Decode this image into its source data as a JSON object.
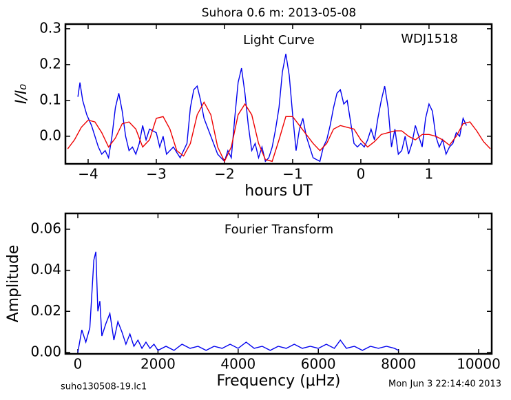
{
  "chart_data": [
    {
      "type": "line",
      "title": "Suhora 0.6 m:  2013-05-08",
      "annotations": [
        "Light Curve",
        "WDJ1518"
      ],
      "xlabel": "hours UT",
      "ylabel": "I/I₀",
      "xlim": [
        -4.333,
        1.92
      ],
      "ylim": [
        -0.077,
        0.313
      ],
      "xticks": [
        {
          "value": -4,
          "label": "−4"
        },
        {
          "value": -3,
          "label": "−3"
        },
        {
          "value": -2,
          "label": "−2"
        },
        {
          "value": -1,
          "label": "−1"
        },
        0,
        1
      ],
      "yticks": [
        {
          "value": 0,
          "label": "0.0"
        },
        {
          "value": 0.1,
          "label": "0.1"
        },
        {
          "value": 0.2,
          "label": "0.2"
        },
        {
          "value": 0.3,
          "label": "0.3"
        }
      ],
      "series": [
        {
          "color": "#0000ee",
          "x": [
            -4.15,
            -4.12,
            -4.08,
            -4.02,
            -3.95,
            -3.9,
            -3.85,
            -3.8,
            -3.75,
            -3.7,
            -3.65,
            -3.6,
            -3.55,
            -3.5,
            -3.45,
            -3.4,
            -3.35,
            -3.3,
            -3.25,
            -3.2,
            -3.15,
            -3.1,
            -3.0,
            -2.95,
            -2.9,
            -2.85,
            -2.75,
            -2.65,
            -2.55,
            -2.5,
            -2.45,
            -2.4,
            -2.35,
            -2.3,
            -2.2,
            -2.1,
            -2.0,
            -1.95,
            -1.9,
            -1.85,
            -1.8,
            -1.75,
            -1.7,
            -1.65,
            -1.6,
            -1.55,
            -1.5,
            -1.45,
            -1.4,
            -1.35,
            -1.3,
            -1.25,
            -1.2,
            -1.15,
            -1.1,
            -1.05,
            -1.0,
            -0.95,
            -0.9,
            -0.85,
            -0.8,
            -0.75,
            -0.7,
            -0.6,
            -0.55,
            -0.5,
            -0.45,
            -0.4,
            -0.35,
            -0.3,
            -0.25,
            -0.2,
            -0.15,
            -0.1,
            -0.05,
            0.0,
            0.05,
            0.1,
            0.15,
            0.2,
            0.25,
            0.3,
            0.35,
            0.4,
            0.45,
            0.5,
            0.55,
            0.6,
            0.65,
            0.7,
            0.75,
            0.8,
            0.85,
            0.9,
            0.95,
            1.0,
            1.05,
            1.1,
            1.15,
            1.2,
            1.25,
            1.3,
            1.35,
            1.4,
            1.45,
            1.5,
            1.55
          ],
          "values": [
            0.11,
            0.15,
            0.1,
            0.06,
            0.03,
            0.0,
            -0.03,
            -0.05,
            -0.04,
            -0.06,
            0.0,
            0.08,
            0.12,
            0.07,
            0.0,
            -0.04,
            -0.03,
            -0.05,
            -0.02,
            0.03,
            -0.01,
            0.02,
            0.01,
            -0.03,
            0.0,
            -0.05,
            -0.03,
            -0.06,
            -0.02,
            0.08,
            0.13,
            0.14,
            0.1,
            0.05,
            0.0,
            -0.05,
            -0.07,
            -0.04,
            -0.06,
            0.05,
            0.15,
            0.19,
            0.12,
            0.03,
            -0.04,
            -0.02,
            -0.06,
            -0.03,
            -0.07,
            -0.06,
            -0.03,
            0.02,
            0.08,
            0.18,
            0.23,
            0.17,
            0.06,
            -0.04,
            0.02,
            0.05,
            0.0,
            -0.03,
            -0.06,
            -0.07,
            -0.03,
            -0.01,
            0.03,
            0.08,
            0.12,
            0.13,
            0.09,
            0.1,
            0.04,
            -0.02,
            -0.03,
            -0.02,
            -0.03,
            -0.01,
            0.02,
            -0.01,
            0.05,
            0.1,
            0.14,
            0.08,
            -0.03,
            0.02,
            -0.05,
            -0.04,
            0.0,
            -0.05,
            -0.02,
            0.03,
            0.0,
            -0.03,
            0.05,
            0.09,
            0.07,
            0.0,
            -0.03,
            -0.01,
            -0.05,
            -0.03,
            -0.02,
            0.01,
            0.0,
            0.05,
            0.03
          ]
        },
        {
          "color": "#ee0000",
          "x": [
            -4.3,
            -4.2,
            -4.1,
            -4.0,
            -3.9,
            -3.8,
            -3.7,
            -3.6,
            -3.5,
            -3.4,
            -3.3,
            -3.2,
            -3.1,
            -3.0,
            -2.9,
            -2.8,
            -2.7,
            -2.6,
            -2.5,
            -2.4,
            -2.3,
            -2.2,
            -2.1,
            -2.0,
            -1.9,
            -1.8,
            -1.7,
            -1.6,
            -1.5,
            -1.4,
            -1.3,
            -1.2,
            -1.1,
            -1.0,
            -0.9,
            -0.8,
            -0.7,
            -0.6,
            -0.5,
            -0.4,
            -0.3,
            -0.2,
            -0.1,
            0.0,
            0.1,
            0.2,
            0.3,
            0.4,
            0.5,
            0.6,
            0.7,
            0.8,
            0.9,
            1.0,
            1.1,
            1.2,
            1.3,
            1.4,
            1.5,
            1.6,
            1.7,
            1.8,
            1.9
          ],
          "values": [
            -0.035,
            -0.01,
            0.025,
            0.045,
            0.04,
            0.01,
            -0.03,
            -0.005,
            0.035,
            0.04,
            0.02,
            -0.03,
            -0.01,
            0.05,
            0.055,
            0.02,
            -0.04,
            -0.055,
            -0.02,
            0.06,
            0.095,
            0.06,
            -0.03,
            -0.07,
            -0.03,
            0.06,
            0.09,
            0.06,
            -0.02,
            -0.065,
            -0.07,
            -0.01,
            0.055,
            0.055,
            0.03,
            0.005,
            -0.02,
            -0.04,
            -0.02,
            0.02,
            0.03,
            0.025,
            0.02,
            -0.01,
            -0.03,
            -0.015,
            0.005,
            0.01,
            0.015,
            0.015,
            0.0,
            -0.01,
            0.005,
            0.005,
            0.0,
            -0.01,
            -0.025,
            0.0,
            0.035,
            0.04,
            0.015,
            -0.015,
            -0.035
          ]
        }
      ]
    },
    {
      "type": "line",
      "annotations": [
        "Fourier Transform"
      ],
      "xlabel": "Frequency (μHz)",
      "ylabel": "Amplitude",
      "xlim": [
        -309,
        10326
      ],
      "ylim": [
        -0.0007,
        0.0677
      ],
      "xticks": [
        0,
        2000,
        4000,
        6000,
        8000,
        10000
      ],
      "yticks": [
        {
          "value": 0,
          "label": "0.00"
        },
        {
          "value": 0.02,
          "label": "0.02"
        },
        {
          "value": 0.04,
          "label": "0.04"
        },
        {
          "value": 0.06,
          "label": "0.06"
        }
      ],
      "series": [
        {
          "color": "#0000ee",
          "x": [
            0,
            100,
            200,
            300,
            400,
            450,
            500,
            550,
            600,
            700,
            800,
            900,
            1000,
            1100,
            1200,
            1300,
            1400,
            1500,
            1600,
            1700,
            1800,
            1900,
            2000,
            2200,
            2400,
            2600,
            2800,
            3000,
            3200,
            3400,
            3600,
            3800,
            4000,
            4200,
            4400,
            4600,
            4800,
            5000,
            5200,
            5400,
            5600,
            5800,
            6000,
            6200,
            6400,
            6550,
            6700,
            6900,
            7100,
            7300,
            7500,
            7700,
            7900,
            8000
          ],
          "values": [
            0,
            0.011,
            0.005,
            0.012,
            0.045,
            0.049,
            0.02,
            0.025,
            0.008,
            0.014,
            0.019,
            0.006,
            0.015,
            0.01,
            0.004,
            0.009,
            0.003,
            0.006,
            0.002,
            0.005,
            0.002,
            0.004,
            0.001,
            0.003,
            0.001,
            0.004,
            0.002,
            0.003,
            0.001,
            0.003,
            0.002,
            0.004,
            0.002,
            0.005,
            0.002,
            0.003,
            0.001,
            0.003,
            0.002,
            0.004,
            0.002,
            0.003,
            0.002,
            0.004,
            0.002,
            0.006,
            0.002,
            0.003,
            0.001,
            0.003,
            0.002,
            0.003,
            0.002,
            0.001
          ]
        }
      ]
    }
  ],
  "footer": [
    "suho130508-19.lc1",
    "Mon Jun  3 22:14:40 2013"
  ]
}
